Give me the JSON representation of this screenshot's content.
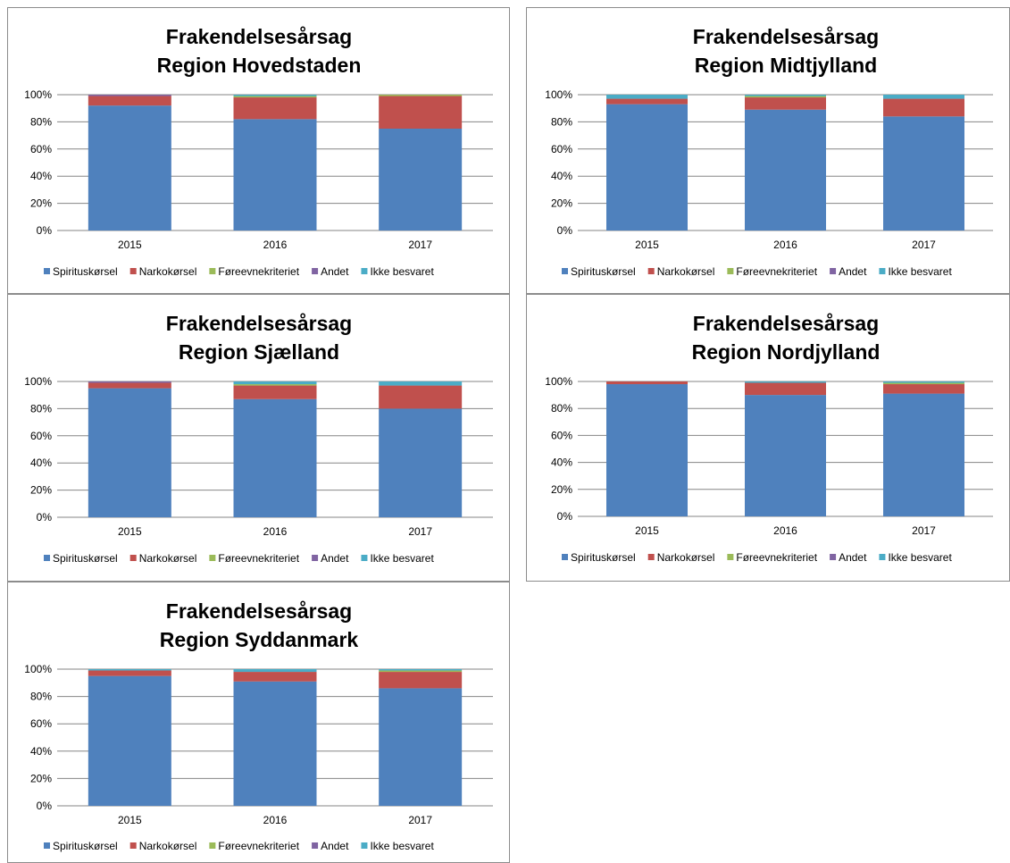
{
  "chart_data": [
    {
      "type": "bar",
      "stacked": true,
      "percent": true,
      "title": [
        "Frakendelsesårsag",
        "Region Hovedstaden"
      ],
      "categories": [
        "2015",
        "2016",
        "2017"
      ],
      "y_ticks": [
        "0%",
        "20%",
        "40%",
        "60%",
        "80%",
        "100%"
      ],
      "ylim": [
        0,
        100
      ],
      "grid": true,
      "legend_position": "bottom",
      "series": [
        {
          "name": "Spirituskørsel",
          "color": "#4f81bd",
          "values": [
            92,
            82,
            75
          ]
        },
        {
          "name": "Narkokørsel",
          "color": "#c0504d",
          "values": [
            7,
            16,
            24
          ]
        },
        {
          "name": "Føreevnekriteriet",
          "color": "#9bbb59",
          "values": [
            0,
            1,
            1
          ]
        },
        {
          "name": "Andet",
          "color": "#8064a2",
          "values": [
            1,
            0,
            0
          ]
        },
        {
          "name": "Ikke besvaret",
          "color": "#4bacc6",
          "values": [
            0,
            1,
            0
          ]
        }
      ]
    },
    {
      "type": "bar",
      "stacked": true,
      "percent": true,
      "title": [
        "Frakendelsesårsag",
        "Region Midtjylland"
      ],
      "categories": [
        "2015",
        "2016",
        "2017"
      ],
      "y_ticks": [
        "0%",
        "20%",
        "40%",
        "60%",
        "80%",
        "100%"
      ],
      "ylim": [
        0,
        100
      ],
      "grid": true,
      "legend_position": "bottom",
      "series": [
        {
          "name": "Spirituskørsel",
          "color": "#4f81bd",
          "values": [
            93,
            89,
            84
          ]
        },
        {
          "name": "Narkokørsel",
          "color": "#c0504d",
          "values": [
            4,
            9,
            13
          ]
        },
        {
          "name": "Føreevnekriteriet",
          "color": "#9bbb59",
          "values": [
            0,
            1,
            0
          ]
        },
        {
          "name": "Andet",
          "color": "#8064a2",
          "values": [
            0,
            0,
            0
          ]
        },
        {
          "name": "Ikke besvaret",
          "color": "#4bacc6",
          "values": [
            3,
            1,
            3
          ]
        }
      ]
    },
    {
      "type": "bar",
      "stacked": true,
      "percent": true,
      "title": [
        "Frakendelsesårsag",
        "Region Sjælland"
      ],
      "categories": [
        "2015",
        "2016",
        "2017"
      ],
      "y_ticks": [
        "0%",
        "20%",
        "40%",
        "60%",
        "80%",
        "100%"
      ],
      "ylim": [
        0,
        100
      ],
      "grid": true,
      "legend_position": "bottom",
      "series": [
        {
          "name": "Spirituskørsel",
          "color": "#4f81bd",
          "values": [
            95,
            87,
            80
          ]
        },
        {
          "name": "Narkokørsel",
          "color": "#c0504d",
          "values": [
            4,
            10,
            17
          ]
        },
        {
          "name": "Føreevnekriteriet",
          "color": "#9bbb59",
          "values": [
            0,
            1,
            0
          ]
        },
        {
          "name": "Andet",
          "color": "#8064a2",
          "values": [
            1,
            0,
            0
          ]
        },
        {
          "name": "Ikke besvaret",
          "color": "#4bacc6",
          "values": [
            0,
            2,
            3
          ]
        }
      ]
    },
    {
      "type": "bar",
      "stacked": true,
      "percent": true,
      "title": [
        "Frakendelsesårsag",
        "Region Nordjylland"
      ],
      "categories": [
        "2015",
        "2016",
        "2017"
      ],
      "y_ticks": [
        "0%",
        "20%",
        "40%",
        "60%",
        "80%",
        "100%"
      ],
      "ylim": [
        0,
        100
      ],
      "grid": true,
      "legend_position": "bottom",
      "series": [
        {
          "name": "Spirituskørsel",
          "color": "#4f81bd",
          "values": [
            98,
            90,
            91
          ]
        },
        {
          "name": "Narkokørsel",
          "color": "#c0504d",
          "values": [
            2,
            9,
            7
          ]
        },
        {
          "name": "Føreevnekriteriet",
          "color": "#9bbb59",
          "values": [
            0,
            0,
            1
          ]
        },
        {
          "name": "Andet",
          "color": "#8064a2",
          "values": [
            0,
            0,
            0
          ]
        },
        {
          "name": "Ikke besvaret",
          "color": "#4bacc6",
          "values": [
            0,
            1,
            1
          ]
        }
      ]
    },
    {
      "type": "bar",
      "stacked": true,
      "percent": true,
      "title": [
        "Frakendelsesårsag",
        "Region Syddanmark"
      ],
      "categories": [
        "2015",
        "2016",
        "2017"
      ],
      "y_ticks": [
        "0%",
        "20%",
        "40%",
        "60%",
        "80%",
        "100%"
      ],
      "ylim": [
        0,
        100
      ],
      "grid": true,
      "legend_position": "bottom",
      "series": [
        {
          "name": "Spirituskørsel",
          "color": "#4f81bd",
          "values": [
            95,
            91,
            86
          ]
        },
        {
          "name": "Narkokørsel",
          "color": "#c0504d",
          "values": [
            4,
            7,
            12
          ]
        },
        {
          "name": "Føreevnekriteriet",
          "color": "#9bbb59",
          "values": [
            0,
            0,
            1
          ]
        },
        {
          "name": "Andet",
          "color": "#8064a2",
          "values": [
            0,
            0,
            0
          ]
        },
        {
          "name": "Ikke besvaret",
          "color": "#4bacc6",
          "values": [
            1,
            2,
            1
          ]
        }
      ]
    }
  ]
}
